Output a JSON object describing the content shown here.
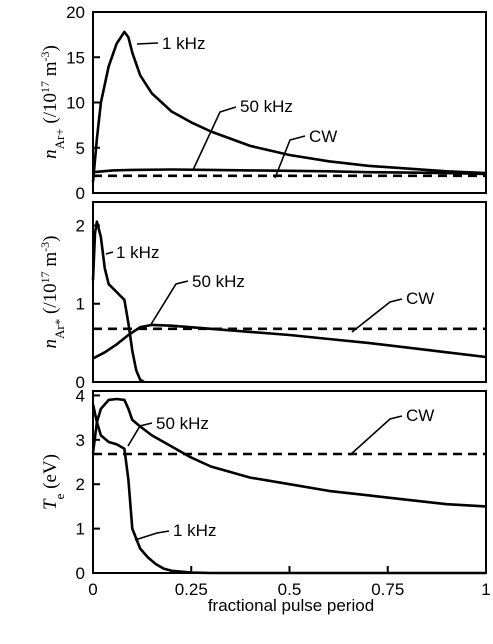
{
  "chart_data": [
    {
      "type": "line",
      "ylabel_main": "n",
      "ylabel_sub": "Ar+",
      "ylabel_unit_open": " (/10",
      "ylabel_unit_exp": "17",
      "ylabel_unit_mid": " m",
      "ylabel_unit_exp2": "-3",
      "ylabel_unit_close": ")",
      "xlim": [
        0,
        1
      ],
      "ylim": [
        0,
        20
      ],
      "yticks": [
        0,
        5,
        10,
        15,
        20
      ],
      "series": [
        {
          "name": "1 kHz",
          "style": "solid",
          "x": [
            0,
            0.01,
            0.02,
            0.04,
            0.06,
            0.08,
            0.09,
            0.1,
            0.12,
            0.15,
            0.2,
            0.25,
            0.3,
            0.4,
            0.5,
            0.6,
            0.7,
            0.8,
            0.9,
            1.0
          ],
          "y": [
            1.2,
            6,
            10,
            14,
            16.5,
            17.8,
            17.2,
            15.5,
            13,
            11,
            9,
            7.8,
            6.8,
            5.2,
            4.2,
            3.5,
            3,
            2.7,
            2.4,
            2.2
          ]
        },
        {
          "name": "50 kHz",
          "style": "solid",
          "x": [
            0,
            0.05,
            0.1,
            0.2,
            0.3,
            0.4,
            0.5,
            0.6,
            0.7,
            0.8,
            0.9,
            1.0
          ],
          "y": [
            2.3,
            2.5,
            2.55,
            2.6,
            2.55,
            2.5,
            2.45,
            2.4,
            2.3,
            2.25,
            2.2,
            2.1
          ]
        },
        {
          "name": "CW",
          "style": "dashed",
          "x": [
            0,
            1
          ],
          "y": [
            1.9,
            1.9
          ]
        }
      ]
    },
    {
      "type": "line",
      "ylabel_main": "n",
      "ylabel_sub": "Ar*",
      "ylabel_unit_open": " (/10",
      "ylabel_unit_exp": "17",
      "ylabel_unit_mid": " m",
      "ylabel_unit_exp2": "-3",
      "ylabel_unit_close": ")",
      "xlim": [
        0,
        1
      ],
      "ylim": [
        0,
        2.3
      ],
      "yticks": [
        0,
        1,
        2
      ],
      "series": [
        {
          "name": "1 kHz",
          "style": "solid",
          "x": [
            0,
            0.005,
            0.01,
            0.02,
            0.03,
            0.04,
            0.05,
            0.06,
            0.07,
            0.08,
            0.09,
            0.1,
            0.11,
            0.12,
            0.13
          ],
          "y": [
            1.3,
            1.9,
            2.05,
            1.85,
            1.45,
            1.25,
            1.2,
            1.15,
            1.1,
            1.05,
            0.75,
            0.4,
            0.15,
            0.03,
            0
          ]
        },
        {
          "name": "50 kHz",
          "style": "solid",
          "x": [
            0,
            0.03,
            0.06,
            0.09,
            0.12,
            0.15,
            0.2,
            0.3,
            0.4,
            0.5,
            0.6,
            0.7,
            0.8,
            0.9,
            1.0
          ],
          "y": [
            0.3,
            0.38,
            0.48,
            0.6,
            0.7,
            0.73,
            0.72,
            0.68,
            0.64,
            0.6,
            0.55,
            0.5,
            0.44,
            0.38,
            0.32
          ]
        },
        {
          "name": "CW",
          "style": "dashed",
          "x": [
            0,
            1
          ],
          "y": [
            0.68,
            0.68
          ]
        }
      ]
    },
    {
      "type": "line",
      "ylabel_main": "T",
      "ylabel_sub": "e",
      "ylabel_unit_open": " (eV)",
      "ylabel_unit_exp": "",
      "ylabel_unit_mid": "",
      "ylabel_unit_exp2": "",
      "ylabel_unit_close": "",
      "xlabel": "fractional pulse period",
      "xlim": [
        0,
        1
      ],
      "ylim": [
        0,
        4.1
      ],
      "yticks": [
        0,
        1,
        2,
        3,
        4
      ],
      "xticks": [
        0,
        0.25,
        0.5,
        0.75,
        1
      ],
      "xticklabels": [
        "0",
        "0.25",
        "0.5",
        "0.75",
        "1"
      ],
      "series": [
        {
          "name": "50 kHz",
          "style": "solid",
          "x": [
            0,
            0.01,
            0.02,
            0.04,
            0.06,
            0.08,
            0.09,
            0.1,
            0.12,
            0.15,
            0.2,
            0.25,
            0.3,
            0.4,
            0.5,
            0.6,
            0.7,
            0.8,
            0.9,
            1.0
          ],
          "y": [
            2.7,
            3.4,
            3.7,
            3.9,
            3.92,
            3.9,
            3.7,
            3.45,
            3.3,
            3.1,
            2.85,
            2.6,
            2.4,
            2.15,
            2,
            1.85,
            1.75,
            1.65,
            1.55,
            1.5
          ]
        },
        {
          "name": "1 kHz",
          "style": "solid",
          "x": [
            0,
            0.01,
            0.02,
            0.04,
            0.06,
            0.08,
            0.09,
            0.1,
            0.12,
            0.14,
            0.16,
            0.18,
            0.2,
            0.25,
            0.3,
            0.5,
            1.0
          ],
          "y": [
            3.8,
            3.4,
            3.1,
            2.95,
            2.9,
            2.8,
            2.1,
            1.0,
            0.55,
            0.35,
            0.2,
            0.1,
            0.05,
            0.01,
            0,
            0,
            0
          ]
        },
        {
          "name": "CW",
          "style": "dashed",
          "x": [
            0,
            1
          ],
          "y": [
            2.68,
            2.68
          ]
        }
      ]
    }
  ]
}
